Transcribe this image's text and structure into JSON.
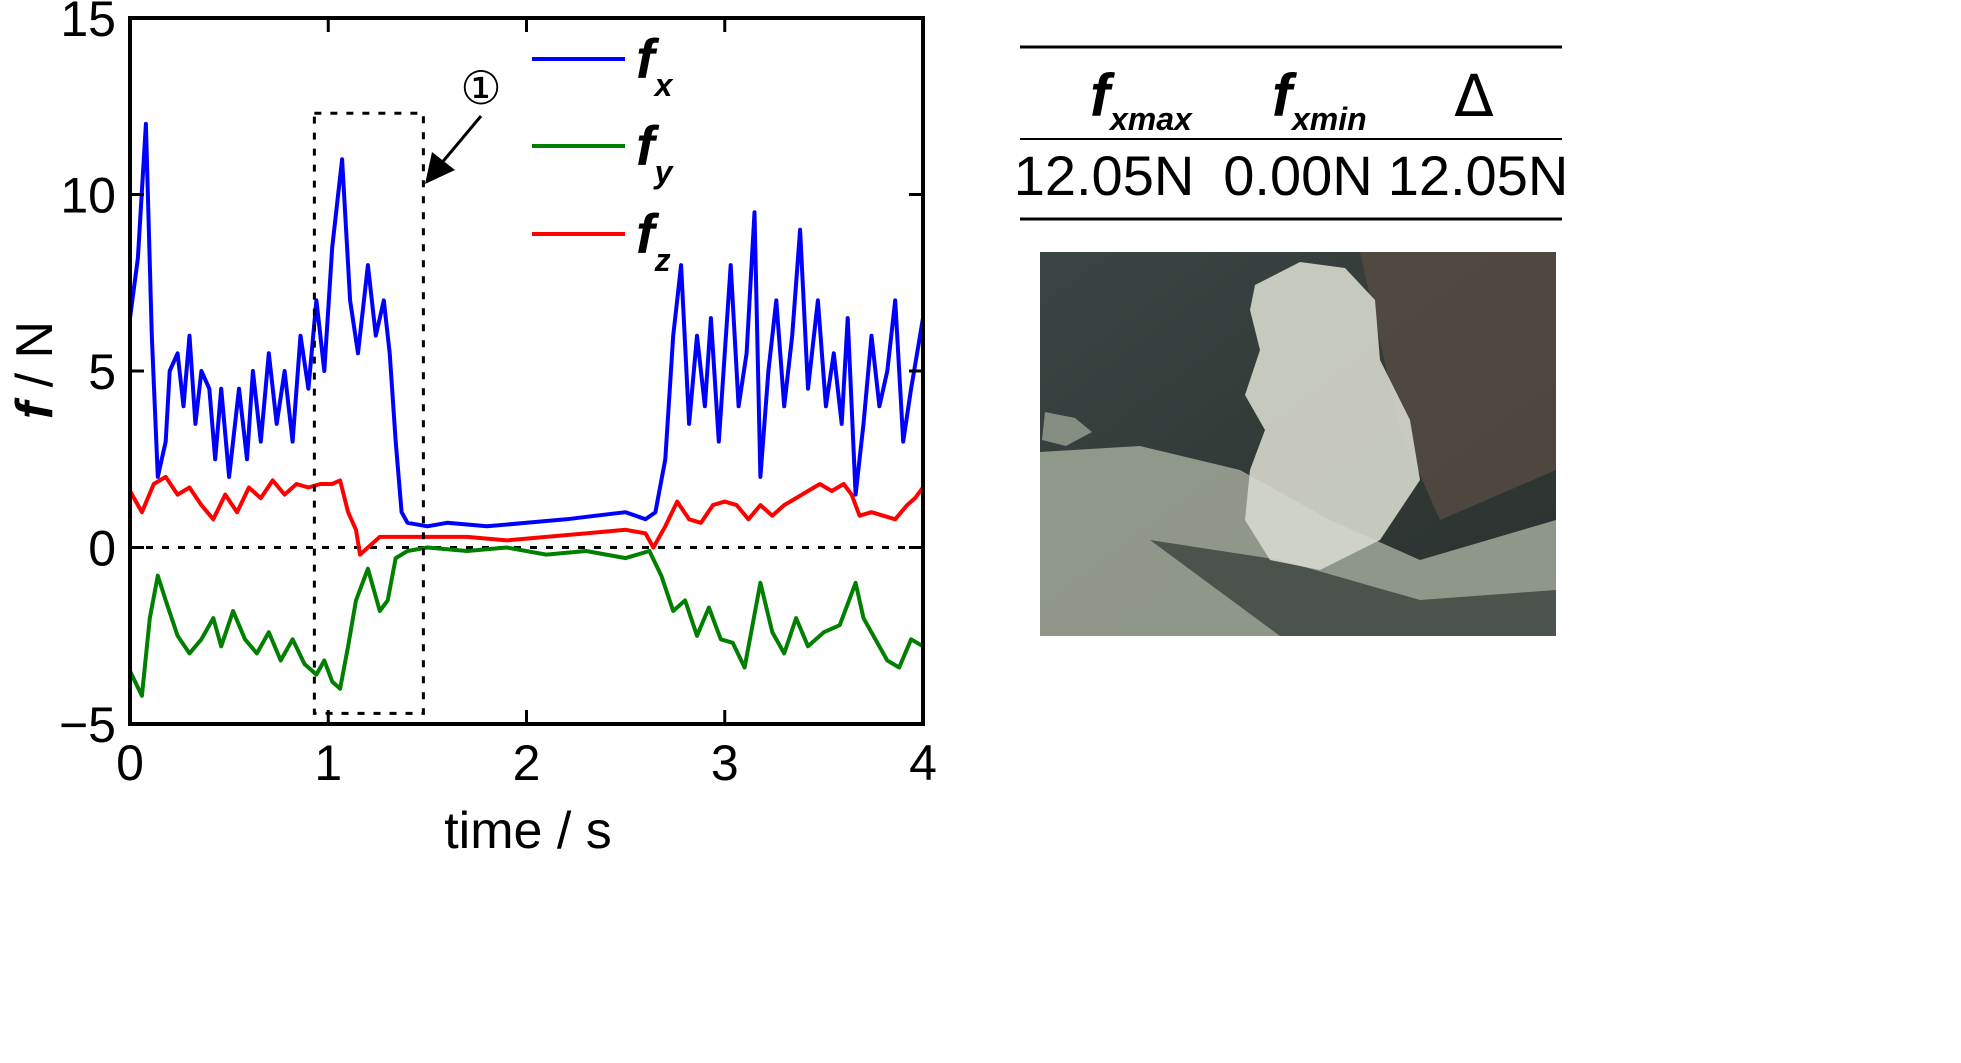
{
  "chart_data": {
    "type": "line",
    "xlabel": "time / s",
    "ylabel_symbol": "f",
    "ylabel_unit": " / N",
    "xlim": [
      0,
      4
    ],
    "ylim": [
      -5,
      15
    ],
    "x_ticks": [
      0,
      1,
      2,
      3,
      4
    ],
    "y_ticks": [
      -5,
      0,
      5,
      10,
      15
    ],
    "y_tick_labels": [
      "−5",
      "0",
      "5",
      "10",
      "15"
    ],
    "zero_reference_line": true,
    "legend_position": "top-right",
    "highlight_box": {
      "x_range": [
        0.93,
        1.48
      ],
      "y_range": [
        -4.7,
        12.3
      ],
      "label": "①"
    },
    "series": [
      {
        "name": "f",
        "name_subscript": "x",
        "color": "#0000ff",
        "points": [
          [
            0.0,
            6.5
          ],
          [
            0.04,
            8.2
          ],
          [
            0.08,
            12.0
          ],
          [
            0.11,
            6.0
          ],
          [
            0.14,
            2.0
          ],
          [
            0.18,
            3.0
          ],
          [
            0.2,
            5.0
          ],
          [
            0.24,
            5.5
          ],
          [
            0.27,
            4.0
          ],
          [
            0.3,
            6.0
          ],
          [
            0.33,
            3.5
          ],
          [
            0.36,
            5.0
          ],
          [
            0.4,
            4.5
          ],
          [
            0.43,
            2.5
          ],
          [
            0.46,
            4.5
          ],
          [
            0.5,
            2.0
          ],
          [
            0.55,
            4.5
          ],
          [
            0.59,
            2.5
          ],
          [
            0.62,
            5.0
          ],
          [
            0.66,
            3.0
          ],
          [
            0.7,
            5.5
          ],
          [
            0.74,
            3.5
          ],
          [
            0.78,
            5.0
          ],
          [
            0.82,
            3.0
          ],
          [
            0.86,
            6.0
          ],
          [
            0.9,
            4.5
          ],
          [
            0.94,
            7.0
          ],
          [
            0.98,
            5.0
          ],
          [
            1.02,
            8.5
          ],
          [
            1.07,
            11.0
          ],
          [
            1.11,
            7.0
          ],
          [
            1.15,
            5.5
          ],
          [
            1.2,
            8.0
          ],
          [
            1.24,
            6.0
          ],
          [
            1.28,
            7.0
          ],
          [
            1.31,
            5.5
          ],
          [
            1.34,
            3.0
          ],
          [
            1.37,
            1.0
          ],
          [
            1.4,
            0.7
          ],
          [
            1.5,
            0.6
          ],
          [
            1.6,
            0.7
          ],
          [
            1.8,
            0.6
          ],
          [
            2.0,
            0.7
          ],
          [
            2.2,
            0.8
          ],
          [
            2.35,
            0.9
          ],
          [
            2.5,
            1.0
          ],
          [
            2.6,
            0.8
          ],
          [
            2.65,
            1.0
          ],
          [
            2.7,
            2.5
          ],
          [
            2.74,
            6.0
          ],
          [
            2.78,
            8.0
          ],
          [
            2.82,
            3.5
          ],
          [
            2.86,
            6.0
          ],
          [
            2.9,
            4.0
          ],
          [
            2.93,
            6.5
          ],
          [
            2.97,
            3.0
          ],
          [
            3.03,
            8.0
          ],
          [
            3.07,
            4.0
          ],
          [
            3.11,
            5.5
          ],
          [
            3.15,
            9.5
          ],
          [
            3.18,
            2.0
          ],
          [
            3.22,
            5.0
          ],
          [
            3.26,
            7.0
          ],
          [
            3.3,
            4.0
          ],
          [
            3.34,
            6.0
          ],
          [
            3.38,
            9.0
          ],
          [
            3.42,
            4.5
          ],
          [
            3.47,
            7.0
          ],
          [
            3.51,
            4.0
          ],
          [
            3.55,
            5.5
          ],
          [
            3.59,
            3.5
          ],
          [
            3.62,
            6.5
          ],
          [
            3.66,
            1.5
          ],
          [
            3.7,
            3.5
          ],
          [
            3.74,
            6.0
          ],
          [
            3.78,
            4.0
          ],
          [
            3.82,
            5.0
          ],
          [
            3.86,
            7.0
          ],
          [
            3.9,
            3.0
          ],
          [
            3.94,
            4.5
          ],
          [
            3.97,
            5.5
          ],
          [
            4.0,
            6.5
          ]
        ]
      },
      {
        "name": "f",
        "name_subscript": "y",
        "color": "#007f00",
        "points": [
          [
            0.0,
            -3.5
          ],
          [
            0.06,
            -4.2
          ],
          [
            0.1,
            -2.0
          ],
          [
            0.14,
            -0.8
          ],
          [
            0.18,
            -1.5
          ],
          [
            0.24,
            -2.5
          ],
          [
            0.3,
            -3.0
          ],
          [
            0.36,
            -2.6
          ],
          [
            0.42,
            -2.0
          ],
          [
            0.46,
            -2.8
          ],
          [
            0.52,
            -1.8
          ],
          [
            0.58,
            -2.6
          ],
          [
            0.64,
            -3.0
          ],
          [
            0.7,
            -2.4
          ],
          [
            0.76,
            -3.2
          ],
          [
            0.82,
            -2.6
          ],
          [
            0.88,
            -3.3
          ],
          [
            0.94,
            -3.6
          ],
          [
            0.98,
            -3.2
          ],
          [
            1.02,
            -3.8
          ],
          [
            1.06,
            -4.0
          ],
          [
            1.1,
            -2.8
          ],
          [
            1.14,
            -1.5
          ],
          [
            1.2,
            -0.6
          ],
          [
            1.26,
            -1.8
          ],
          [
            1.3,
            -1.5
          ],
          [
            1.34,
            -0.3
          ],
          [
            1.4,
            -0.1
          ],
          [
            1.5,
            0.0
          ],
          [
            1.7,
            -0.1
          ],
          [
            1.9,
            0.0
          ],
          [
            2.1,
            -0.2
          ],
          [
            2.3,
            -0.1
          ],
          [
            2.5,
            -0.3
          ],
          [
            2.62,
            -0.1
          ],
          [
            2.68,
            -0.8
          ],
          [
            2.74,
            -1.8
          ],
          [
            2.8,
            -1.5
          ],
          [
            2.86,
            -2.5
          ],
          [
            2.92,
            -1.7
          ],
          [
            2.98,
            -2.6
          ],
          [
            3.04,
            -2.7
          ],
          [
            3.1,
            -3.4
          ],
          [
            3.14,
            -2.2
          ],
          [
            3.18,
            -1.0
          ],
          [
            3.24,
            -2.4
          ],
          [
            3.3,
            -3.0
          ],
          [
            3.36,
            -2.0
          ],
          [
            3.42,
            -2.8
          ],
          [
            3.5,
            -2.4
          ],
          [
            3.58,
            -2.2
          ],
          [
            3.62,
            -1.6
          ],
          [
            3.66,
            -1.0
          ],
          [
            3.7,
            -2.0
          ],
          [
            3.76,
            -2.6
          ],
          [
            3.82,
            -3.2
          ],
          [
            3.88,
            -3.4
          ],
          [
            3.94,
            -2.6
          ],
          [
            4.0,
            -2.8
          ]
        ]
      },
      {
        "name": "f",
        "name_subscript": "z",
        "color": "#ff0000",
        "points": [
          [
            0.0,
            1.6
          ],
          [
            0.06,
            1.0
          ],
          [
            0.12,
            1.8
          ],
          [
            0.18,
            2.0
          ],
          [
            0.24,
            1.5
          ],
          [
            0.3,
            1.7
          ],
          [
            0.36,
            1.2
          ],
          [
            0.42,
            0.8
          ],
          [
            0.48,
            1.5
          ],
          [
            0.54,
            1.0
          ],
          [
            0.6,
            1.7
          ],
          [
            0.66,
            1.4
          ],
          [
            0.72,
            1.9
          ],
          [
            0.78,
            1.5
          ],
          [
            0.84,
            1.8
          ],
          [
            0.9,
            1.7
          ],
          [
            0.96,
            1.8
          ],
          [
            1.02,
            1.8
          ],
          [
            1.06,
            1.9
          ],
          [
            1.1,
            1.0
          ],
          [
            1.14,
            0.5
          ],
          [
            1.16,
            -0.2
          ],
          [
            1.2,
            0.0
          ],
          [
            1.26,
            0.3
          ],
          [
            1.34,
            0.3
          ],
          [
            1.5,
            0.3
          ],
          [
            1.7,
            0.3
          ],
          [
            1.9,
            0.2
          ],
          [
            2.1,
            0.3
          ],
          [
            2.3,
            0.4
          ],
          [
            2.5,
            0.5
          ],
          [
            2.6,
            0.4
          ],
          [
            2.64,
            0.0
          ],
          [
            2.7,
            0.6
          ],
          [
            2.76,
            1.3
          ],
          [
            2.82,
            0.8
          ],
          [
            2.88,
            0.7
          ],
          [
            2.94,
            1.2
          ],
          [
            3.0,
            1.3
          ],
          [
            3.06,
            1.2
          ],
          [
            3.12,
            0.8
          ],
          [
            3.18,
            1.2
          ],
          [
            3.24,
            0.9
          ],
          [
            3.3,
            1.2
          ],
          [
            3.36,
            1.4
          ],
          [
            3.42,
            1.6
          ],
          [
            3.48,
            1.8
          ],
          [
            3.54,
            1.6
          ],
          [
            3.6,
            1.8
          ],
          [
            3.64,
            1.5
          ],
          [
            3.68,
            0.9
          ],
          [
            3.74,
            1.0
          ],
          [
            3.8,
            0.9
          ],
          [
            3.86,
            0.8
          ],
          [
            3.92,
            1.2
          ],
          [
            3.96,
            1.4
          ],
          [
            4.0,
            1.7
          ]
        ]
      }
    ]
  },
  "annotation": {
    "label": "①"
  },
  "table": {
    "headers": [
      {
        "symbol": "f",
        "sub": "xmax"
      },
      {
        "symbol": "f",
        "sub": "xmin"
      },
      {
        "symbol": "Δ",
        "sub": ""
      }
    ],
    "values": [
      "12.05N",
      "0.00N",
      "12.05N"
    ]
  },
  "photo": {
    "icon": "material-fracture-photo",
    "colors": {
      "background": "#3b4543",
      "material": "#9aa294",
      "debris": "#d6d8cc",
      "tool": "#5a4e44"
    }
  }
}
